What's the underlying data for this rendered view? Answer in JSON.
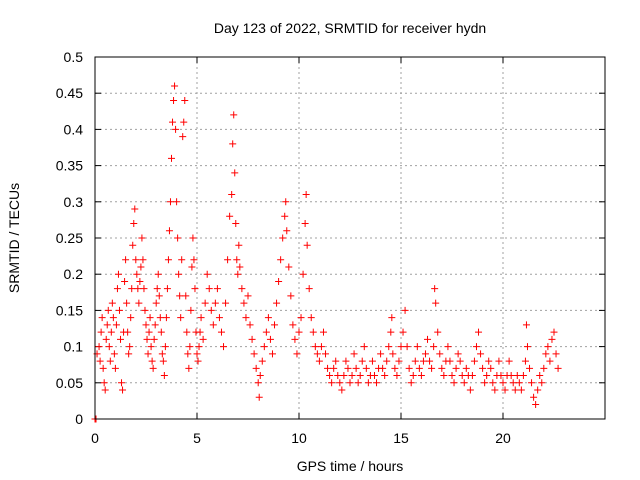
{
  "chart_data": {
    "type": "scatter",
    "title": "Day 123 of 2022, SRMTID for receiver hydn",
    "xlabel": "GPS time / hours",
    "ylabel": "SRMTID / TECUs",
    "xlim": [
      0,
      25
    ],
    "ylim": [
      0,
      0.5
    ],
    "xticks": [
      0,
      5,
      10,
      15,
      20
    ],
    "xtick_labels": [
      "0",
      "5",
      "10",
      "15",
      "20"
    ],
    "yticks": [
      0,
      0.05,
      0.1,
      0.15,
      0.2,
      0.25,
      0.3,
      0.35,
      0.4,
      0.45,
      0.5
    ],
    "ytick_labels": [
      "0",
      "0.05",
      "0.1",
      "0.15",
      "0.2",
      "0.25",
      "0.3",
      "0.35",
      "0.4",
      "0.45",
      "0.5"
    ],
    "grid": true,
    "marker": "+",
    "color": "#ff0000",
    "series": [
      {
        "name": "SRMTID",
        "points": [
          [
            0.0,
            0.0
          ],
          [
            0.05,
            0.0
          ],
          [
            0.1,
            0.09
          ],
          [
            0.2,
            0.1
          ],
          [
            0.25,
            0.08
          ],
          [
            0.3,
            0.12
          ],
          [
            0.35,
            0.14
          ],
          [
            0.4,
            0.07
          ],
          [
            0.45,
            0.05
          ],
          [
            0.5,
            0.04
          ],
          [
            0.55,
            0.11
          ],
          [
            0.6,
            0.13
          ],
          [
            0.65,
            0.15
          ],
          [
            0.7,
            0.1
          ],
          [
            0.75,
            0.08
          ],
          [
            0.8,
            0.12
          ],
          [
            0.85,
            0.16
          ],
          [
            0.9,
            0.14
          ],
          [
            0.95,
            0.09
          ],
          [
            1.0,
            0.07
          ],
          [
            1.05,
            0.13
          ],
          [
            1.1,
            0.18
          ],
          [
            1.15,
            0.2
          ],
          [
            1.2,
            0.15
          ],
          [
            1.25,
            0.11
          ],
          [
            1.3,
            0.05
          ],
          [
            1.35,
            0.04
          ],
          [
            1.4,
            0.12
          ],
          [
            1.45,
            0.19
          ],
          [
            1.5,
            0.22
          ],
          [
            1.55,
            0.16
          ],
          [
            1.6,
            0.12
          ],
          [
            1.65,
            0.09
          ],
          [
            1.7,
            0.1
          ],
          [
            1.75,
            0.14
          ],
          [
            1.8,
            0.18
          ],
          [
            1.85,
            0.24
          ],
          [
            1.9,
            0.27
          ],
          [
            1.95,
            0.29
          ],
          [
            2.0,
            0.22
          ],
          [
            2.05,
            0.2
          ],
          [
            2.1,
            0.18
          ],
          [
            2.15,
            0.16
          ],
          [
            2.2,
            0.19
          ],
          [
            2.25,
            0.21
          ],
          [
            2.3,
            0.25
          ],
          [
            2.35,
            0.22
          ],
          [
            2.4,
            0.18
          ],
          [
            2.45,
            0.15
          ],
          [
            2.5,
            0.13
          ],
          [
            2.55,
            0.11
          ],
          [
            2.6,
            0.09
          ],
          [
            2.65,
            0.12
          ],
          [
            2.7,
            0.14
          ],
          [
            2.75,
            0.1
          ],
          [
            2.8,
            0.08
          ],
          [
            2.85,
            0.07
          ],
          [
            2.9,
            0.11
          ],
          [
            2.95,
            0.13
          ],
          [
            3.0,
            0.16
          ],
          [
            3.05,
            0.18
          ],
          [
            3.1,
            0.2
          ],
          [
            3.15,
            0.17
          ],
          [
            3.2,
            0.14
          ],
          [
            3.25,
            0.12
          ],
          [
            3.3,
            0.09
          ],
          [
            3.35,
            0.08
          ],
          [
            3.4,
            0.06
          ],
          [
            3.45,
            0.1
          ],
          [
            3.5,
            0.14
          ],
          [
            3.55,
            0.18
          ],
          [
            3.6,
            0.22
          ],
          [
            3.65,
            0.26
          ],
          [
            3.7,
            0.3
          ],
          [
            3.75,
            0.36
          ],
          [
            3.8,
            0.41
          ],
          [
            3.85,
            0.44
          ],
          [
            3.9,
            0.46
          ],
          [
            3.95,
            0.4
          ],
          [
            4.0,
            0.3
          ],
          [
            4.05,
            0.25
          ],
          [
            4.1,
            0.2
          ],
          [
            4.15,
            0.17
          ],
          [
            4.2,
            0.14
          ],
          [
            4.25,
            0.22
          ],
          [
            4.3,
            0.39
          ],
          [
            4.35,
            0.41
          ],
          [
            4.4,
            0.44
          ],
          [
            4.45,
            0.17
          ],
          [
            4.5,
            0.12
          ],
          [
            4.55,
            0.09
          ],
          [
            4.6,
            0.07
          ],
          [
            4.65,
            0.1
          ],
          [
            4.7,
            0.15
          ],
          [
            4.75,
            0.21
          ],
          [
            4.8,
            0.25
          ],
          [
            4.85,
            0.22
          ],
          [
            4.9,
            0.18
          ],
          [
            4.95,
            0.12
          ],
          [
            5.0,
            0.09
          ],
          [
            5.05,
            0.08
          ],
          [
            5.1,
            0.1
          ],
          [
            5.15,
            0.12
          ],
          [
            5.2,
            0.14
          ],
          [
            5.3,
            0.11
          ],
          [
            5.4,
            0.16
          ],
          [
            5.5,
            0.2
          ],
          [
            5.6,
            0.18
          ],
          [
            5.7,
            0.15
          ],
          [
            5.8,
            0.13
          ],
          [
            5.9,
            0.16
          ],
          [
            6.0,
            0.18
          ],
          [
            6.1,
            0.14
          ],
          [
            6.2,
            0.12
          ],
          [
            6.3,
            0.1
          ],
          [
            6.4,
            0.16
          ],
          [
            6.5,
            0.22
          ],
          [
            6.6,
            0.28
          ],
          [
            6.7,
            0.31
          ],
          [
            6.75,
            0.38
          ],
          [
            6.8,
            0.42
          ],
          [
            6.85,
            0.34
          ],
          [
            6.9,
            0.27
          ],
          [
            6.95,
            0.22
          ],
          [
            7.0,
            0.2
          ],
          [
            7.05,
            0.24
          ],
          [
            7.1,
            0.21
          ],
          [
            7.2,
            0.18
          ],
          [
            7.3,
            0.16
          ],
          [
            7.4,
            0.14
          ],
          [
            7.5,
            0.17
          ],
          [
            7.6,
            0.13
          ],
          [
            7.7,
            0.11
          ],
          [
            7.8,
            0.09
          ],
          [
            7.9,
            0.07
          ],
          [
            8.0,
            0.05
          ],
          [
            8.05,
            0.03
          ],
          [
            8.1,
            0.06
          ],
          [
            8.2,
            0.08
          ],
          [
            8.3,
            0.1
          ],
          [
            8.4,
            0.12
          ],
          [
            8.5,
            0.14
          ],
          [
            8.6,
            0.11
          ],
          [
            8.7,
            0.09
          ],
          [
            8.8,
            0.13
          ],
          [
            8.9,
            0.16
          ],
          [
            9.0,
            0.19
          ],
          [
            9.1,
            0.22
          ],
          [
            9.2,
            0.25
          ],
          [
            9.3,
            0.28
          ],
          [
            9.35,
            0.3
          ],
          [
            9.4,
            0.26
          ],
          [
            9.5,
            0.21
          ],
          [
            9.6,
            0.17
          ],
          [
            9.7,
            0.13
          ],
          [
            9.8,
            0.11
          ],
          [
            9.9,
            0.09
          ],
          [
            10.0,
            0.12
          ],
          [
            10.1,
            0.14
          ],
          [
            10.2,
            0.2
          ],
          [
            10.3,
            0.27
          ],
          [
            10.35,
            0.31
          ],
          [
            10.4,
            0.24
          ],
          [
            10.5,
            0.18
          ],
          [
            10.6,
            0.14
          ],
          [
            10.7,
            0.12
          ],
          [
            10.8,
            0.1
          ],
          [
            10.9,
            0.09
          ],
          [
            11.0,
            0.08
          ],
          [
            11.1,
            0.1
          ],
          [
            11.2,
            0.12
          ],
          [
            11.3,
            0.09
          ],
          [
            11.4,
            0.07
          ],
          [
            11.5,
            0.06
          ],
          [
            11.6,
            0.05
          ],
          [
            11.7,
            0.07
          ],
          [
            11.8,
            0.08
          ],
          [
            11.9,
            0.06
          ],
          [
            12.0,
            0.05
          ],
          [
            12.1,
            0.04
          ],
          [
            12.2,
            0.06
          ],
          [
            12.3,
            0.08
          ],
          [
            12.4,
            0.07
          ],
          [
            12.5,
            0.05
          ],
          [
            12.6,
            0.06
          ],
          [
            12.7,
            0.09
          ],
          [
            12.8,
            0.07
          ],
          [
            12.9,
            0.05
          ],
          [
            13.0,
            0.06
          ],
          [
            13.1,
            0.08
          ],
          [
            13.2,
            0.1
          ],
          [
            13.3,
            0.07
          ],
          [
            13.4,
            0.05
          ],
          [
            13.5,
            0.06
          ],
          [
            13.6,
            0.08
          ],
          [
            13.7,
            0.06
          ],
          [
            13.8,
            0.05
          ],
          [
            13.9,
            0.07
          ],
          [
            14.0,
            0.09
          ],
          [
            14.1,
            0.07
          ],
          [
            14.2,
            0.06
          ],
          [
            14.3,
            0.08
          ],
          [
            14.4,
            0.1
          ],
          [
            14.5,
            0.12
          ],
          [
            14.55,
            0.14
          ],
          [
            14.6,
            0.09
          ],
          [
            14.7,
            0.07
          ],
          [
            14.8,
            0.06
          ],
          [
            14.9,
            0.08
          ],
          [
            15.0,
            0.1
          ],
          [
            15.1,
            0.12
          ],
          [
            15.2,
            0.15
          ],
          [
            15.3,
            0.1
          ],
          [
            15.4,
            0.07
          ],
          [
            15.5,
            0.05
          ],
          [
            15.6,
            0.06
          ],
          [
            15.7,
            0.08
          ],
          [
            15.8,
            0.1
          ],
          [
            15.9,
            0.07
          ],
          [
            16.0,
            0.06
          ],
          [
            16.1,
            0.08
          ],
          [
            16.2,
            0.09
          ],
          [
            16.3,
            0.11
          ],
          [
            16.4,
            0.08
          ],
          [
            16.5,
            0.07
          ],
          [
            16.6,
            0.1
          ],
          [
            16.65,
            0.18
          ],
          [
            16.7,
            0.16
          ],
          [
            16.8,
            0.12
          ],
          [
            16.9,
            0.09
          ],
          [
            17.0,
            0.07
          ],
          [
            17.1,
            0.06
          ],
          [
            17.2,
            0.08
          ],
          [
            17.3,
            0.1
          ],
          [
            17.4,
            0.08
          ],
          [
            17.5,
            0.06
          ],
          [
            17.6,
            0.05
          ],
          [
            17.7,
            0.07
          ],
          [
            17.8,
            0.09
          ],
          [
            17.9,
            0.08
          ],
          [
            18.0,
            0.06
          ],
          [
            18.1,
            0.05
          ],
          [
            18.2,
            0.07
          ],
          [
            18.3,
            0.06
          ],
          [
            18.4,
            0.04
          ],
          [
            18.5,
            0.06
          ],
          [
            18.6,
            0.08
          ],
          [
            18.7,
            0.1
          ],
          [
            18.8,
            0.12
          ],
          [
            18.9,
            0.09
          ],
          [
            19.0,
            0.07
          ],
          [
            19.1,
            0.05
          ],
          [
            19.2,
            0.06
          ],
          [
            19.3,
            0.08
          ],
          [
            19.4,
            0.07
          ],
          [
            19.5,
            0.05
          ],
          [
            19.6,
            0.04
          ],
          [
            19.7,
            0.06
          ],
          [
            19.8,
            0.08
          ],
          [
            19.9,
            0.06
          ],
          [
            20.0,
            0.05
          ],
          [
            20.1,
            0.04
          ],
          [
            20.2,
            0.06
          ],
          [
            20.3,
            0.08
          ],
          [
            20.4,
            0.06
          ],
          [
            20.5,
            0.05
          ],
          [
            20.6,
            0.04
          ],
          [
            20.7,
            0.06
          ],
          [
            20.8,
            0.05
          ],
          [
            20.9,
            0.04
          ],
          [
            21.0,
            0.06
          ],
          [
            21.1,
            0.08
          ],
          [
            21.15,
            0.13
          ],
          [
            21.2,
            0.1
          ],
          [
            21.3,
            0.07
          ],
          [
            21.4,
            0.05
          ],
          [
            21.5,
            0.03
          ],
          [
            21.6,
            0.02
          ],
          [
            21.7,
            0.04
          ],
          [
            21.8,
            0.06
          ],
          [
            21.9,
            0.05
          ],
          [
            22.0,
            0.07
          ],
          [
            22.1,
            0.09
          ],
          [
            22.2,
            0.1
          ],
          [
            22.3,
            0.08
          ],
          [
            22.4,
            0.11
          ],
          [
            22.5,
            0.12
          ],
          [
            22.6,
            0.09
          ],
          [
            22.7,
            0.07
          ]
        ]
      }
    ]
  }
}
